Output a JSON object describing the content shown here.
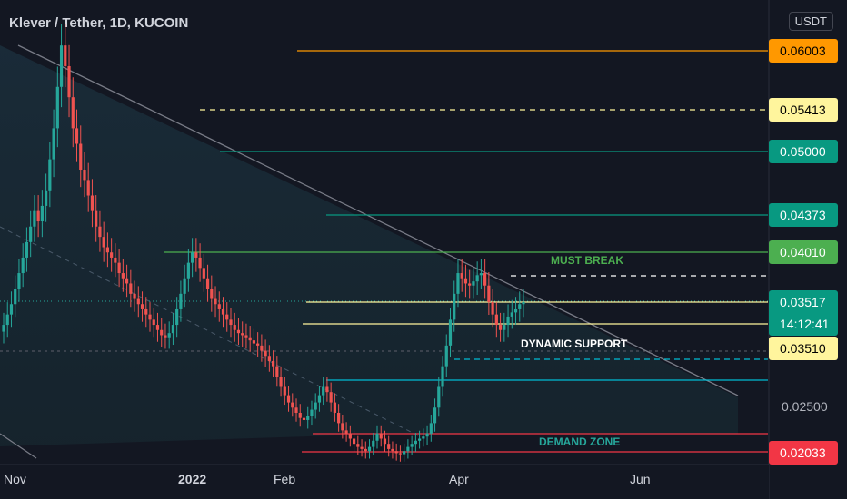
{
  "header": {
    "title": "Klever / Tether, 1D, KUCOIN",
    "currency": "USDT"
  },
  "colors": {
    "background": "#131722",
    "up": "#26a69a",
    "down": "#ef5350",
    "orange": "#ff9800",
    "teal": "#089981",
    "green": "#4caf50",
    "red": "#f23645",
    "yellow": "#fff59d",
    "white": "#ffffff",
    "cyan": "#00bcd4"
  },
  "chart_data": {
    "type": "candlestick",
    "title": "Klever / Tether, 1D, KUCOIN",
    "ylim": [
      0.0195,
      0.0644
    ],
    "x_axis_ticks": [
      "Nov",
      "2022",
      "Feb",
      "Apr",
      "Jun"
    ],
    "y_axis_ticks": [
      "0.02500"
    ],
    "current_price": "0.03517",
    "countdown": "14:12:41",
    "price_levels": [
      {
        "price": 0.06003,
        "label": "0.06003",
        "color": "#ff9800",
        "style": "solid"
      },
      {
        "price": 0.05413,
        "label": "0.05413",
        "color": "#fff59d",
        "style": "dashed"
      },
      {
        "price": 0.05,
        "label": "0.05000",
        "color": "#089981",
        "style": "solid"
      },
      {
        "price": 0.04373,
        "label": "0.04373",
        "color": "#089981",
        "style": "solid"
      },
      {
        "price": 0.0401,
        "label": "0.04010",
        "color": "#4caf50",
        "style": "solid"
      },
      {
        "price": 0.0378,
        "label": "",
        "color": "#ffffff",
        "style": "dashed"
      },
      {
        "price": 0.03517,
        "label": "0.03517",
        "color": "#089981",
        "style": "solid"
      },
      {
        "price": 0.0351,
        "label": "0.03510",
        "color": "#fff59d",
        "style": "solid"
      },
      {
        "price": 0.0306,
        "label": "",
        "color": "#00bcd4",
        "style": "dashed"
      },
      {
        "price": 0.0284,
        "label": "",
        "color": "#00bcd4",
        "style": "solid"
      },
      {
        "price": 0.0218,
        "label": "",
        "color": "#f23645",
        "style": "solid"
      },
      {
        "price": 0.02033,
        "label": "0.02033",
        "color": "#f23645",
        "style": "solid"
      }
    ],
    "annotations": [
      "MUST BREAK",
      "DYNAMIC SUPPORT",
      "DEMAND ZONE"
    ],
    "candles_close_approx": [
      0.033,
      0.034,
      0.035,
      0.0365,
      0.038,
      0.0395,
      0.041,
      0.0425,
      0.044,
      0.043,
      0.0445,
      0.046,
      0.049,
      0.052,
      0.056,
      0.06,
      0.058,
      0.055,
      0.052,
      0.0505,
      0.048,
      0.047,
      0.0455,
      0.044,
      0.0425,
      0.0415,
      0.0405,
      0.04,
      0.0395,
      0.039,
      0.038,
      0.0375,
      0.037,
      0.036,
      0.0355,
      0.035,
      0.0345,
      0.034,
      0.0335,
      0.033,
      0.0325,
      0.032,
      0.0318,
      0.0322,
      0.033,
      0.0345,
      0.036,
      0.0375,
      0.039,
      0.04,
      0.0395,
      0.0385,
      0.0375,
      0.0365,
      0.0355,
      0.035,
      0.0345,
      0.034,
      0.0335,
      0.033,
      0.0325,
      0.0322,
      0.032,
      0.0318,
      0.0315,
      0.0312,
      0.031,
      0.0305,
      0.03,
      0.0295,
      0.029,
      0.028,
      0.027,
      0.0262,
      0.0255,
      0.025,
      0.0245,
      0.024,
      0.0238,
      0.0242,
      0.0248,
      0.0255,
      0.0262,
      0.027,
      0.0265,
      0.0255,
      0.0245,
      0.0235,
      0.0228,
      0.0225,
      0.022,
      0.0215,
      0.0212,
      0.021,
      0.0208,
      0.0212,
      0.0218,
      0.0225,
      0.022,
      0.0215,
      0.021,
      0.0208,
      0.0206,
      0.0205,
      0.0208,
      0.0212,
      0.0215,
      0.0218,
      0.022,
      0.0222,
      0.0225,
      0.0235,
      0.025,
      0.027,
      0.029,
      0.031,
      0.0335,
      0.036,
      0.038,
      0.0375,
      0.037,
      0.0368,
      0.0372,
      0.0378,
      0.038,
      0.0368,
      0.0352,
      0.034,
      0.033,
      0.0325,
      0.033,
      0.0338,
      0.0342,
      0.0345,
      0.035,
      0.0352
    ]
  }
}
